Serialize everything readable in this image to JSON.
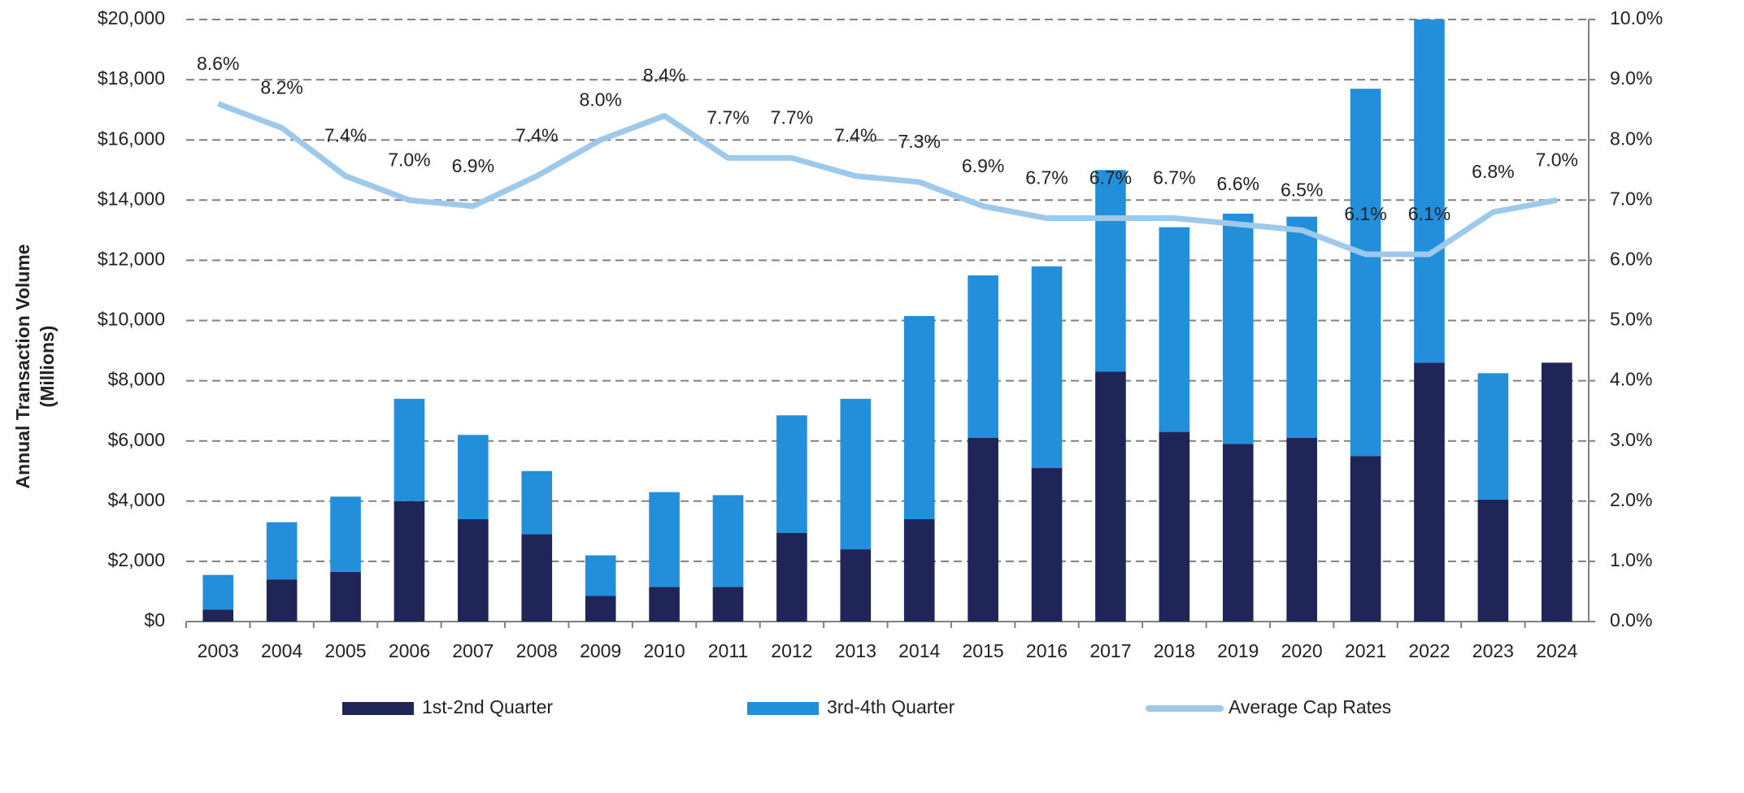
{
  "chart_data": {
    "type": "bar-line",
    "y_label": [
      "Annual Transaction Volume",
      "(Millions)"
    ],
    "categories": [
      "2003",
      "2004",
      "2005",
      "2006",
      "2007",
      "2008",
      "2009",
      "2010",
      "2011",
      "2012",
      "2013",
      "2014",
      "2015",
      "2016",
      "2017",
      "2018",
      "2019",
      "2020",
      "2021",
      "2022",
      "2023",
      "2024"
    ],
    "series": [
      {
        "name": "1st-2nd Quarter",
        "type": "bar",
        "color": "#1f2556",
        "values": [
          400,
          1400,
          1650,
          4000,
          3400,
          2900,
          850,
          1150,
          1150,
          2950,
          2400,
          3400,
          6100,
          5100,
          8300,
          6300,
          5900,
          6100,
          5500,
          8600,
          4050,
          8600
        ]
      },
      {
        "name": "3rd-4th Quarter",
        "type": "bar",
        "color": "#238ed9",
        "values": [
          1150,
          1900,
          2500,
          3400,
          2800,
          2100,
          1350,
          3150,
          3050,
          3900,
          5000,
          6750,
          5400,
          6700,
          6700,
          6800,
          7650,
          7350,
          12200,
          11400,
          4200,
          0
        ]
      },
      {
        "name": "Average Cap Rates",
        "type": "line",
        "axis": "y2",
        "color": "#9ec9ea",
        "values": [
          8.6,
          8.2,
          7.4,
          7.0,
          6.9,
          7.4,
          8.0,
          8.4,
          7.7,
          7.7,
          7.4,
          7.3,
          6.9,
          6.7,
          6.7,
          6.7,
          6.6,
          6.5,
          6.1,
          6.1,
          6.8,
          7.0
        ],
        "value_labels": [
          "8.6%",
          "8.2%",
          "7.4%",
          "7.0%",
          "6.9%",
          "7.4%",
          "8.0%",
          "8.4%",
          "7.7%",
          "7.7%",
          "7.4%",
          "7.3%",
          "6.9%",
          "6.7%",
          "6.7%",
          "6.7%",
          "6.6%",
          "6.5%",
          "6.1%",
          "6.1%",
          "6.8%",
          "7.0%"
        ]
      }
    ],
    "ylim": [
      0,
      20000
    ],
    "yticks": [
      {
        "value": 0,
        "label": "$0"
      },
      {
        "value": 2000,
        "label": "$2,000"
      },
      {
        "value": 4000,
        "label": "$4,000"
      },
      {
        "value": 6000,
        "label": "$6,000"
      },
      {
        "value": 8000,
        "label": "$8,000"
      },
      {
        "value": 10000,
        "label": "$10,000"
      },
      {
        "value": 12000,
        "label": "$12,000"
      },
      {
        "value": 14000,
        "label": "$14,000"
      },
      {
        "value": 16000,
        "label": "$16,000"
      },
      {
        "value": 18000,
        "label": "$18,000"
      },
      {
        "value": 20000,
        "label": "$20,000"
      }
    ],
    "y2lim": [
      0,
      10
    ],
    "y2ticks": [
      {
        "value": 0,
        "label": "0.0%"
      },
      {
        "value": 1,
        "label": "1.0%"
      },
      {
        "value": 2,
        "label": "2.0%"
      },
      {
        "value": 3,
        "label": "3.0%"
      },
      {
        "value": 4,
        "label": "4.0%"
      },
      {
        "value": 5,
        "label": "5.0%"
      },
      {
        "value": 6,
        "label": "6.0%"
      },
      {
        "value": 7,
        "label": "7.0%"
      },
      {
        "value": 8,
        "label": "8.0%"
      },
      {
        "value": 9,
        "label": "9.0%"
      },
      {
        "value": 10,
        "label": "10.0%"
      }
    ],
    "grid": true,
    "legend": "bottom"
  }
}
